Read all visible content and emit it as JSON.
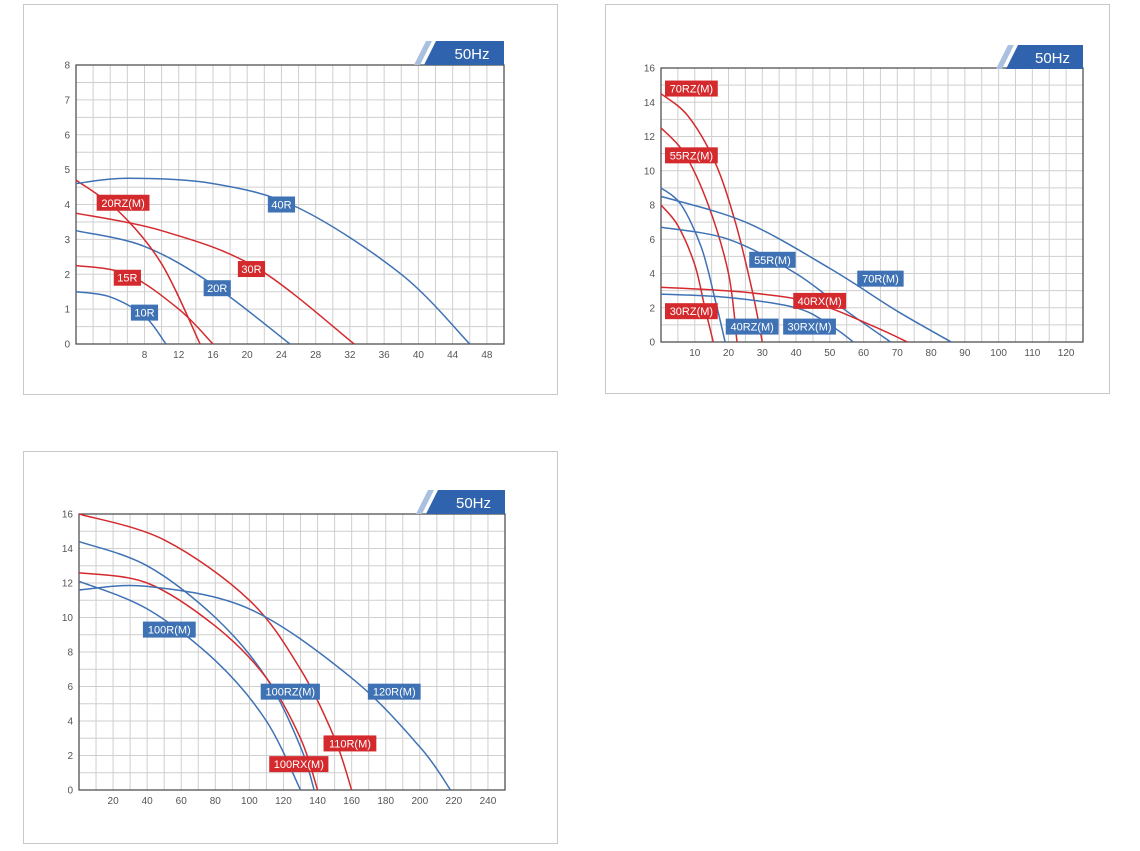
{
  "colors": {
    "red": "#d42a2e",
    "blue": "#3f72b4",
    "grid": "#cfcfcf",
    "tab": "#2f63ae",
    "tab_stripe": "#a9c0e0"
  },
  "chart_data": [
    {
      "type": "line",
      "frequency_label": "50Hz",
      "xlim": [
        0,
        50
      ],
      "ylim": [
        0,
        8
      ],
      "grid_x_step": 2,
      "grid_y_step": 0.5,
      "xticks": [
        8,
        12,
        16,
        20,
        24,
        28,
        32,
        36,
        40,
        44,
        48
      ],
      "yticks": [
        0,
        1,
        2,
        3,
        4,
        5,
        6,
        7,
        8
      ],
      "series": [
        {
          "name": "10R",
          "color": "blue",
          "points": [
            [
              0,
              1.5
            ],
            [
              4,
              1.35
            ],
            [
              8,
              0.8
            ],
            [
              10.5,
              0
            ]
          ],
          "label_at": [
            8,
            0.9
          ]
        },
        {
          "name": "15R",
          "color": "red",
          "points": [
            [
              0,
              2.25
            ],
            [
              6,
              2.0
            ],
            [
              12,
              1.0
            ],
            [
              16,
              0
            ]
          ],
          "label_at": [
            6,
            1.9
          ]
        },
        {
          "name": "20R",
          "color": "blue",
          "points": [
            [
              0,
              3.25
            ],
            [
              8,
              2.8
            ],
            [
              16,
              1.7
            ],
            [
              25,
              0
            ]
          ],
          "label_at": [
            16.5,
            1.6
          ]
        },
        {
          "name": "20RZ(M)",
          "color": "red",
          "points": [
            [
              0,
              4.7
            ],
            [
              5,
              3.8
            ],
            [
              10,
              2.3
            ],
            [
              14.5,
              0
            ]
          ],
          "label_at": [
            5.5,
            4.05
          ]
        },
        {
          "name": "30R",
          "color": "red",
          "points": [
            [
              0,
              3.75
            ],
            [
              10,
              3.25
            ],
            [
              21,
              2.2
            ],
            [
              32.5,
              0
            ]
          ],
          "label_at": [
            20.5,
            2.15
          ]
        },
        {
          "name": "40R",
          "color": "blue",
          "points": [
            [
              0,
              4.6
            ],
            [
              6,
              4.75
            ],
            [
              16,
              4.6
            ],
            [
              26,
              3.9
            ],
            [
              38,
              2.0
            ],
            [
              46,
              0
            ]
          ],
          "label_at": [
            24,
            4.0
          ]
        }
      ]
    },
    {
      "type": "line",
      "frequency_label": "50Hz",
      "xlim": [
        0,
        125
      ],
      "ylim": [
        0,
        16
      ],
      "grid_x_step": 5,
      "grid_y_step": 1,
      "xticks": [
        10,
        20,
        30,
        40,
        50,
        60,
        70,
        80,
        90,
        100,
        110,
        120
      ],
      "yticks": [
        0,
        2,
        4,
        6,
        8,
        10,
        12,
        14,
        16
      ],
      "series": [
        {
          "name": "70RZ(M)",
          "color": "red",
          "points": [
            [
              0,
              14.5
            ],
            [
              8,
              13.2
            ],
            [
              16,
              10.5
            ],
            [
              22,
              7
            ],
            [
              27,
              3
            ],
            [
              30,
              0
            ]
          ],
          "label_at": [
            9,
            14.8
          ]
        },
        {
          "name": "55RZ(M)",
          "color": "red",
          "points": [
            [
              0,
              12.5
            ],
            [
              7,
              11
            ],
            [
              14,
              8
            ],
            [
              20,
              4
            ],
            [
              22.5,
              0
            ]
          ],
          "label_at": [
            9,
            10.9
          ]
        },
        {
          "name": "30RZ(M)",
          "color": "red",
          "points": [
            [
              0,
              8.0
            ],
            [
              5,
              6.8
            ],
            [
              10,
              4.5
            ],
            [
              13,
              2
            ],
            [
              15.5,
              0
            ]
          ],
          "label_at": [
            9,
            1.8
          ]
        },
        {
          "name": "40RZ(M)",
          "color": "blue",
          "points": [
            [
              0,
              9.0
            ],
            [
              6,
              8.0
            ],
            [
              12,
              5.5
            ],
            [
              16,
              2.5
            ],
            [
              19,
              0
            ]
          ],
          "label_at": [
            27,
            0.9
          ]
        },
        {
          "name": "55R(M)",
          "color": "blue",
          "points": [
            [
              0,
              6.7
            ],
            [
              20,
              6.0
            ],
            [
              40,
              4.0
            ],
            [
              55,
              1.8
            ],
            [
              68,
              0
            ]
          ],
          "label_at": [
            33,
            4.8
          ]
        },
        {
          "name": "70R(M)",
          "color": "blue",
          "points": [
            [
              0,
              8.5
            ],
            [
              25,
              7.0
            ],
            [
              50,
              4.3
            ],
            [
              70,
              1.8
            ],
            [
              86,
              0
            ]
          ],
          "label_at": [
            65,
            3.7
          ]
        },
        {
          "name": "40RX(M)",
          "color": "red",
          "points": [
            [
              0,
              3.2
            ],
            [
              25,
              2.9
            ],
            [
              45,
              2.3
            ],
            [
              62,
              1.0
            ],
            [
              73,
              0
            ]
          ],
          "label_at": [
            47,
            2.4
          ]
        },
        {
          "name": "30RX(M)",
          "color": "blue",
          "points": [
            [
              0,
              2.8
            ],
            [
              20,
              2.6
            ],
            [
              40,
              2.0
            ],
            [
              50,
              1.0
            ],
            [
              57,
              0
            ]
          ],
          "label_at": [
            44,
            0.9
          ]
        }
      ]
    },
    {
      "type": "line",
      "frequency_label": "50Hz",
      "xlim": [
        0,
        250
      ],
      "ylim": [
        0,
        16
      ],
      "grid_x_step": 10,
      "grid_y_step": 1,
      "xticks": [
        20,
        40,
        60,
        80,
        100,
        120,
        140,
        160,
        180,
        200,
        220,
        240
      ],
      "yticks": [
        0,
        2,
        4,
        6,
        8,
        10,
        12,
        14,
        16
      ],
      "series": [
        {
          "name": "100R(M)",
          "color": "blue",
          "points": [
            [
              0,
              12.1
            ],
            [
              40,
              10.5
            ],
            [
              80,
              7.5
            ],
            [
              110,
              4
            ],
            [
              130,
              0
            ]
          ],
          "label_at": [
            53,
            9.3
          ]
        },
        {
          "name": "100RZ(M)",
          "color": "blue",
          "points": [
            [
              0,
              14.4
            ],
            [
              40,
              13
            ],
            [
              80,
              10
            ],
            [
              110,
              6.5
            ],
            [
              130,
              2.5
            ],
            [
              138,
              0
            ]
          ],
          "label_at": [
            124,
            5.7
          ]
        },
        {
          "name": "100RX(M)",
          "color": "red",
          "points": [
            [
              0,
              12.6
            ],
            [
              40,
              12
            ],
            [
              80,
              9.5
            ],
            [
              110,
              6.5
            ],
            [
              130,
              3
            ],
            [
              140,
              0
            ]
          ],
          "label_at": [
            129,
            1.5
          ]
        },
        {
          "name": "110R(M)",
          "color": "red",
          "points": [
            [
              0,
              16
            ],
            [
              50,
              14.5
            ],
            [
              100,
              11
            ],
            [
              130,
              7
            ],
            [
              150,
              3
            ],
            [
              160,
              0
            ]
          ],
          "label_at": [
            159,
            2.7
          ]
        },
        {
          "name": "120R(M)",
          "color": "blue",
          "points": [
            [
              0,
              11.6
            ],
            [
              40,
              11.8
            ],
            [
              100,
              10.5
            ],
            [
              160,
              6.5
            ],
            [
              200,
              2.5
            ],
            [
              218,
              0
            ]
          ],
          "label_at": [
            185,
            5.7
          ]
        }
      ]
    }
  ]
}
